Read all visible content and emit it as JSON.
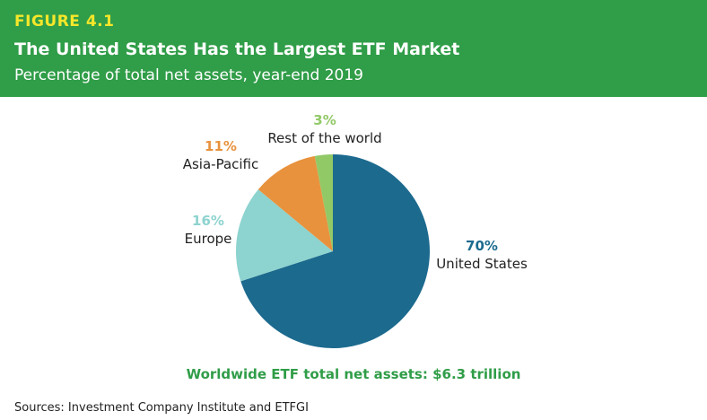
{
  "header": {
    "figure": "FIGURE 4.1",
    "title": "The United States Has the Largest ETF Market",
    "subtitle": "Percentage of total net assets, year-end 2019"
  },
  "chart_data": {
    "type": "pie",
    "title": "The United States Has the Largest ETF Market",
    "subtitle": "Percentage of total net assets, year-end 2019",
    "slices": [
      {
        "label": "United States",
        "value": 70,
        "pct_label": "70%",
        "color": "#1c6a8e"
      },
      {
        "label": "Europe",
        "value": 16,
        "pct_label": "16%",
        "color": "#8dd3cf"
      },
      {
        "label": "Asia-Pacific",
        "value": 11,
        "pct_label": "11%",
        "color": "#e8923d"
      },
      {
        "label": "Rest of the world",
        "value": 3,
        "pct_label": "3%",
        "color": "#92c967"
      }
    ]
  },
  "footer": {
    "total": "Worldwide ETF total net assets: $6.3 trillion",
    "sources": "Sources: Investment Company Institute and ETFGI"
  }
}
